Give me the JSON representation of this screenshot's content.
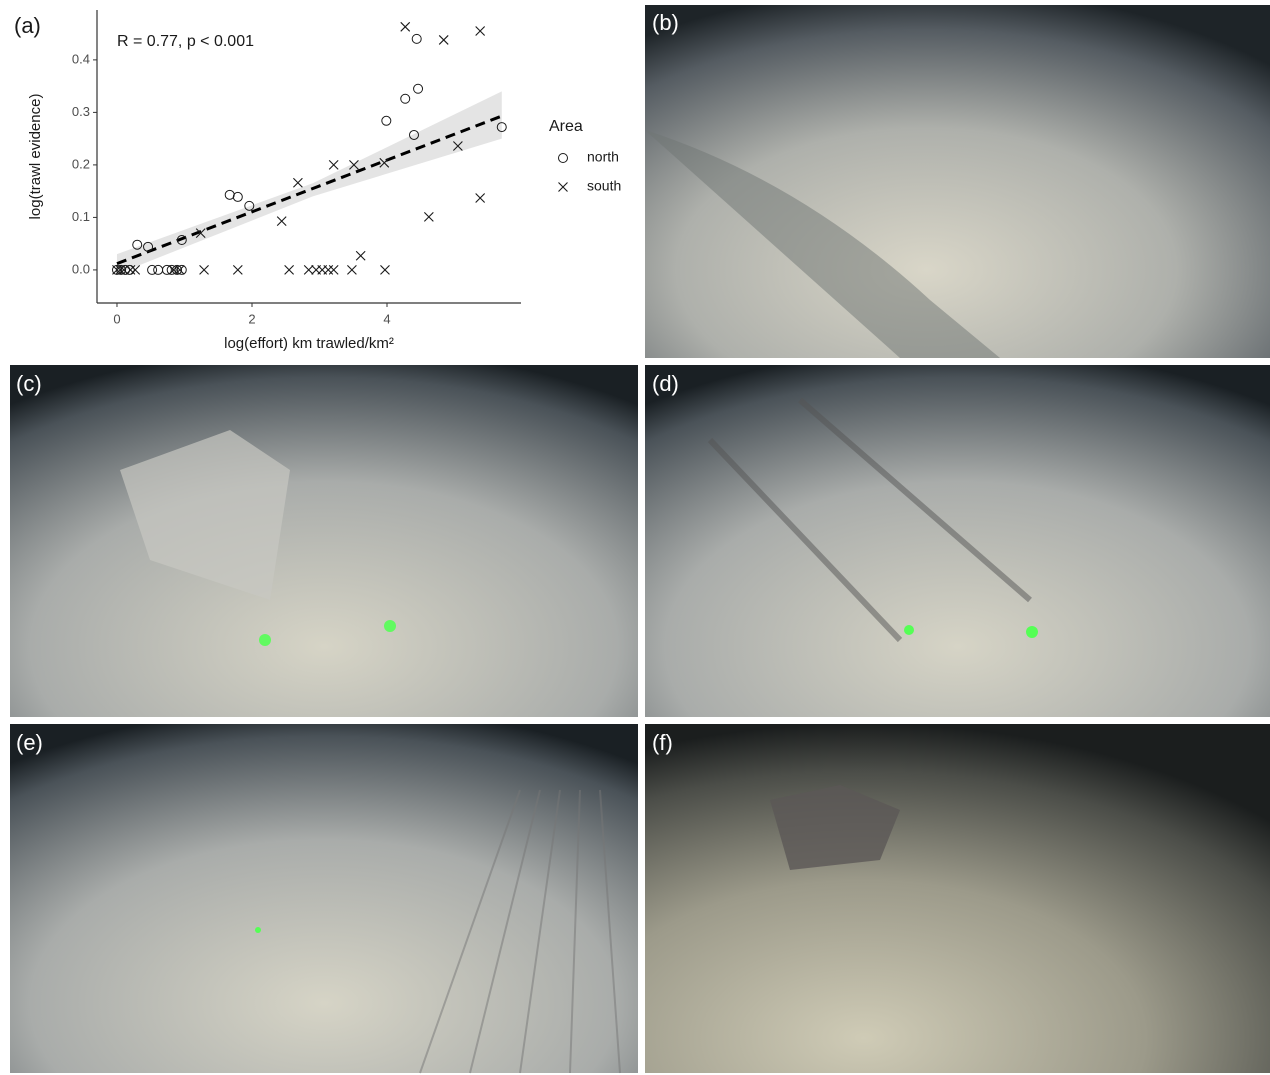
{
  "chart_data": {
    "type": "scatter",
    "panel_label": "(a)",
    "annotation": "R = 0.77, p < 0.001",
    "x_label": "log(effort) km trawled/km²",
    "y_label": "log(trawl evidence)",
    "legend_title": "Area",
    "legend_position": "right",
    "xlim": [
      -0.296,
      5.985
    ],
    "ylim": [
      -0.063,
      0.495
    ],
    "xticks": [
      0,
      2,
      4
    ],
    "yticks": [
      {
        "value": 0,
        "label": "0.0"
      },
      0.1,
      0.2,
      0.3,
      0.4
    ],
    "series": [
      {
        "name": "north",
        "marker": "circle",
        "color": "#1a1a1a",
        "x": [
          0.3,
          0.46,
          0.96,
          1.67,
          1.79,
          1.96,
          3.99,
          4.27,
          4.4,
          4.46,
          4.44,
          5.7,
          0,
          0.06,
          0.12,
          0.19,
          0.52,
          0.61,
          0.74,
          0.81,
          0.89,
          0.96
        ],
        "values": [
          0.048,
          0.044,
          0.057,
          0.143,
          0.139,
          0.122,
          0.284,
          0.326,
          0.257,
          0.345,
          0.44,
          0.272,
          0,
          0,
          0,
          0,
          0,
          0,
          0,
          0,
          0,
          0
        ]
      },
      {
        "name": "south",
        "marker": "cross",
        "color": "#1a1a1a",
        "x": [
          0,
          0.05,
          0.1,
          0.2,
          0.27,
          0.84,
          0.93,
          1.24,
          1.29,
          1.79,
          2.44,
          2.55,
          2.68,
          2.84,
          2.95,
          3.04,
          3.13,
          3.21,
          3.21,
          3.48,
          3.51,
          3.61,
          3.96,
          3.97,
          4.27,
          4.62,
          4.84,
          5.05,
          5.38,
          5.38
        ],
        "values": [
          0,
          0,
          0,
          0,
          0,
          0,
          0,
          0.07,
          0,
          0,
          0.093,
          0,
          0.166,
          0,
          0,
          0,
          0,
          0.2,
          0,
          0,
          0.2,
          0.027,
          0.204,
          0,
          0.463,
          0.101,
          0.438,
          0.236,
          0.455,
          0.137
        ]
      }
    ],
    "trend": {
      "x": [
        0,
        5.7
      ],
      "y": [
        0.012,
        0.293
      ]
    },
    "ci": {
      "x": [
        0,
        2.9,
        5.7
      ],
      "lower": [
        -0.008,
        0.14,
        0.25
      ],
      "upper": [
        0.03,
        0.165,
        0.34
      ]
    }
  },
  "photo_panels": [
    "(b)",
    "(c)",
    "(d)",
    "(e)",
    "(f)"
  ]
}
